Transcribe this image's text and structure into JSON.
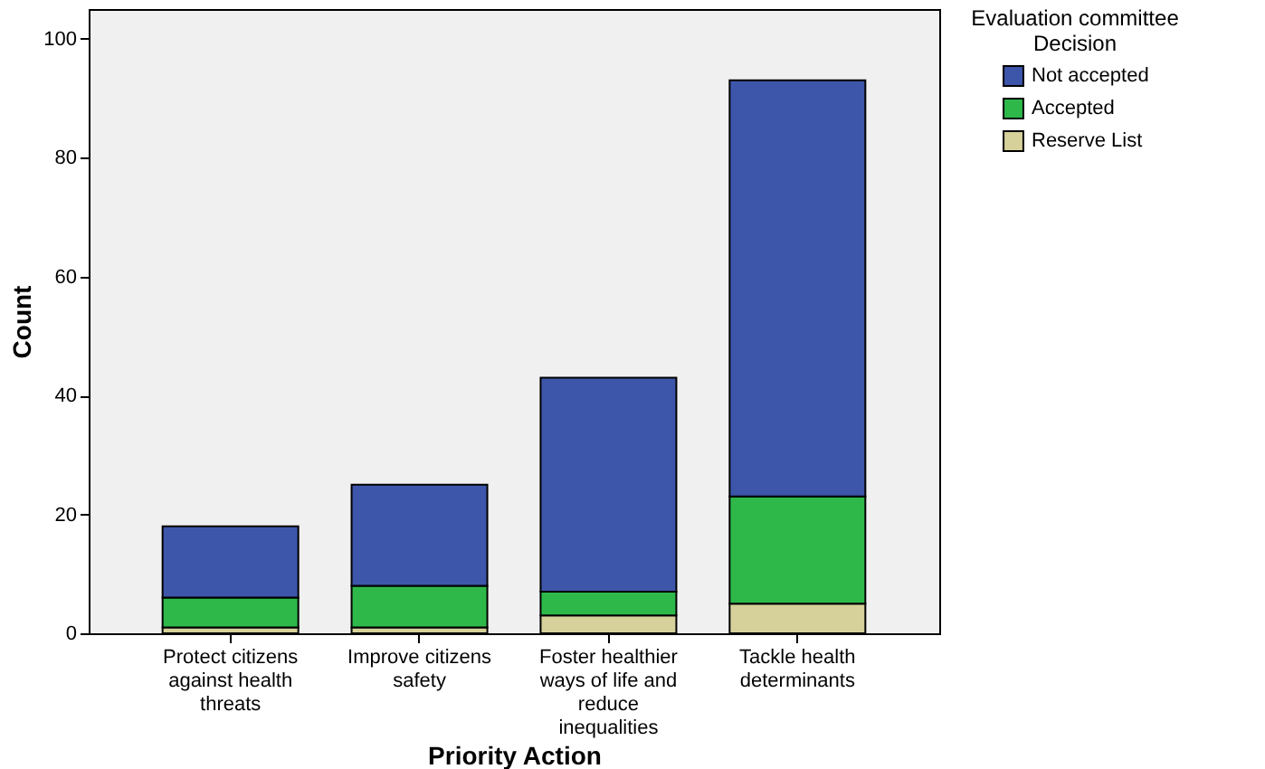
{
  "chart_data": {
    "type": "bar",
    "stacked": true,
    "xlabel": "Priority Action",
    "ylabel": "Count",
    "legend_title": "Evaluation committee Decision",
    "legend": "top right",
    "categories": [
      "Protect citizens against health threats",
      "Improve citizens safety",
      "Foster healthier ways of life and reduce inequalities",
      "Tackle health determinants"
    ],
    "series": [
      {
        "name": "Reserve List",
        "color": "#d6d09a",
        "values": [
          1,
          1,
          3,
          5
        ]
      },
      {
        "name": "Accepted",
        "color": "#2eb84a",
        "values": [
          5,
          7,
          4,
          18
        ]
      },
      {
        "name": "Not accepted",
        "color": "#3d56aa",
        "values": [
          12,
          17,
          36,
          70
        ]
      }
    ],
    "ylim": [
      0,
      105
    ],
    "yticks": [
      0,
      20,
      40,
      60,
      80,
      100
    ],
    "grid": false
  }
}
